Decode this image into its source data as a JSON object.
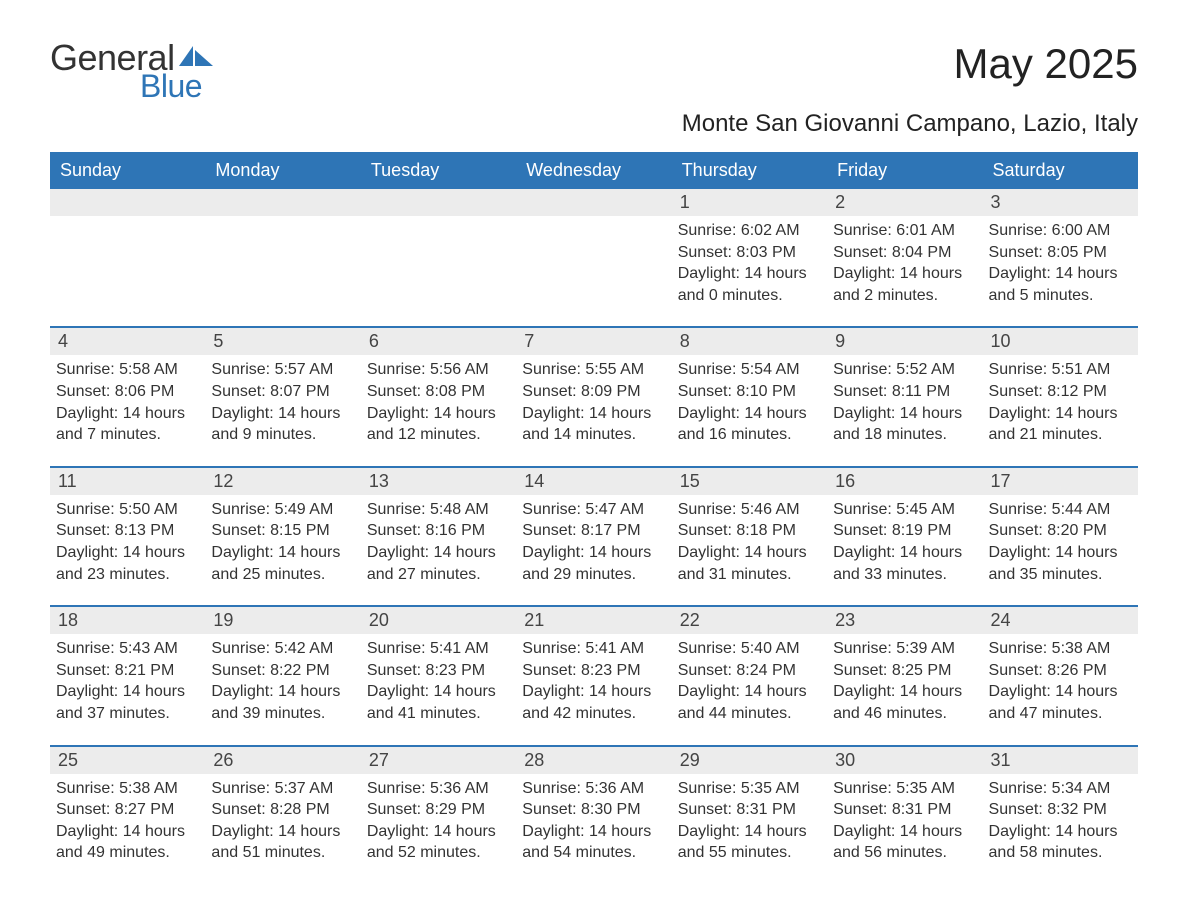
{
  "brand": {
    "general": "General",
    "blue": "Blue",
    "accent_color": "#2e75b6",
    "text_color": "#333333"
  },
  "title": "May 2025",
  "location": "Monte San Giovanni Campano, Lazio, Italy",
  "day_headers": [
    "Sunday",
    "Monday",
    "Tuesday",
    "Wednesday",
    "Thursday",
    "Friday",
    "Saturday"
  ],
  "colors": {
    "header_bg": "#2e75b6",
    "header_text": "#ffffff",
    "row_border": "#2e75b6",
    "daynum_bg": "#ececec",
    "body_text": "#333333",
    "page_bg": "#ffffff"
  },
  "fonts": {
    "title_size_pt": 32,
    "location_size_pt": 18,
    "header_size_pt": 14,
    "body_size_pt": 12
  },
  "weeks": [
    [
      null,
      null,
      null,
      null,
      {
        "n": "1",
        "sunrise": "6:02 AM",
        "sunset": "8:03 PM",
        "daylight": "14 hours and 0 minutes."
      },
      {
        "n": "2",
        "sunrise": "6:01 AM",
        "sunset": "8:04 PM",
        "daylight": "14 hours and 2 minutes."
      },
      {
        "n": "3",
        "sunrise": "6:00 AM",
        "sunset": "8:05 PM",
        "daylight": "14 hours and 5 minutes."
      }
    ],
    [
      {
        "n": "4",
        "sunrise": "5:58 AM",
        "sunset": "8:06 PM",
        "daylight": "14 hours and 7 minutes."
      },
      {
        "n": "5",
        "sunrise": "5:57 AM",
        "sunset": "8:07 PM",
        "daylight": "14 hours and 9 minutes."
      },
      {
        "n": "6",
        "sunrise": "5:56 AM",
        "sunset": "8:08 PM",
        "daylight": "14 hours and 12 minutes."
      },
      {
        "n": "7",
        "sunrise": "5:55 AM",
        "sunset": "8:09 PM",
        "daylight": "14 hours and 14 minutes."
      },
      {
        "n": "8",
        "sunrise": "5:54 AM",
        "sunset": "8:10 PM",
        "daylight": "14 hours and 16 minutes."
      },
      {
        "n": "9",
        "sunrise": "5:52 AM",
        "sunset": "8:11 PM",
        "daylight": "14 hours and 18 minutes."
      },
      {
        "n": "10",
        "sunrise": "5:51 AM",
        "sunset": "8:12 PM",
        "daylight": "14 hours and 21 minutes."
      }
    ],
    [
      {
        "n": "11",
        "sunrise": "5:50 AM",
        "sunset": "8:13 PM",
        "daylight": "14 hours and 23 minutes."
      },
      {
        "n": "12",
        "sunrise": "5:49 AM",
        "sunset": "8:15 PM",
        "daylight": "14 hours and 25 minutes."
      },
      {
        "n": "13",
        "sunrise": "5:48 AM",
        "sunset": "8:16 PM",
        "daylight": "14 hours and 27 minutes."
      },
      {
        "n": "14",
        "sunrise": "5:47 AM",
        "sunset": "8:17 PM",
        "daylight": "14 hours and 29 minutes."
      },
      {
        "n": "15",
        "sunrise": "5:46 AM",
        "sunset": "8:18 PM",
        "daylight": "14 hours and 31 minutes."
      },
      {
        "n": "16",
        "sunrise": "5:45 AM",
        "sunset": "8:19 PM",
        "daylight": "14 hours and 33 minutes."
      },
      {
        "n": "17",
        "sunrise": "5:44 AM",
        "sunset": "8:20 PM",
        "daylight": "14 hours and 35 minutes."
      }
    ],
    [
      {
        "n": "18",
        "sunrise": "5:43 AM",
        "sunset": "8:21 PM",
        "daylight": "14 hours and 37 minutes."
      },
      {
        "n": "19",
        "sunrise": "5:42 AM",
        "sunset": "8:22 PM",
        "daylight": "14 hours and 39 minutes."
      },
      {
        "n": "20",
        "sunrise": "5:41 AM",
        "sunset": "8:23 PM",
        "daylight": "14 hours and 41 minutes."
      },
      {
        "n": "21",
        "sunrise": "5:41 AM",
        "sunset": "8:23 PM",
        "daylight": "14 hours and 42 minutes."
      },
      {
        "n": "22",
        "sunrise": "5:40 AM",
        "sunset": "8:24 PM",
        "daylight": "14 hours and 44 minutes."
      },
      {
        "n": "23",
        "sunrise": "5:39 AM",
        "sunset": "8:25 PM",
        "daylight": "14 hours and 46 minutes."
      },
      {
        "n": "24",
        "sunrise": "5:38 AM",
        "sunset": "8:26 PM",
        "daylight": "14 hours and 47 minutes."
      }
    ],
    [
      {
        "n": "25",
        "sunrise": "5:38 AM",
        "sunset": "8:27 PM",
        "daylight": "14 hours and 49 minutes."
      },
      {
        "n": "26",
        "sunrise": "5:37 AM",
        "sunset": "8:28 PM",
        "daylight": "14 hours and 51 minutes."
      },
      {
        "n": "27",
        "sunrise": "5:36 AM",
        "sunset": "8:29 PM",
        "daylight": "14 hours and 52 minutes."
      },
      {
        "n": "28",
        "sunrise": "5:36 AM",
        "sunset": "8:30 PM",
        "daylight": "14 hours and 54 minutes."
      },
      {
        "n": "29",
        "sunrise": "5:35 AM",
        "sunset": "8:31 PM",
        "daylight": "14 hours and 55 minutes."
      },
      {
        "n": "30",
        "sunrise": "5:35 AM",
        "sunset": "8:31 PM",
        "daylight": "14 hours and 56 minutes."
      },
      {
        "n": "31",
        "sunrise": "5:34 AM",
        "sunset": "8:32 PM",
        "daylight": "14 hours and 58 minutes."
      }
    ]
  ],
  "labels": {
    "sunrise": "Sunrise:",
    "sunset": "Sunset:",
    "daylight": "Daylight:"
  }
}
